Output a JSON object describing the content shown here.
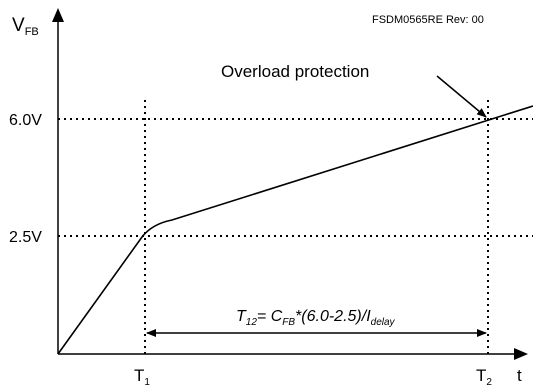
{
  "y_axis": {
    "label_main": "V",
    "label_sub": "FB",
    "ticks": [
      "6.0V",
      "2.5V"
    ]
  },
  "x_axis": {
    "label": "t",
    "t1_main": "T",
    "t1_sub": "1",
    "t2_main": "T",
    "t2_sub": "2"
  },
  "revision": "FSDM0565RE Rev: 00",
  "annotation": "Overload protection",
  "formula": {
    "t_main": "T",
    "t_sub": "12",
    "eq": "= ",
    "c_main": "C",
    "c_sub": "FB",
    "mid": "*(6.0-2.5)/I",
    "i_sub": "delay"
  }
}
